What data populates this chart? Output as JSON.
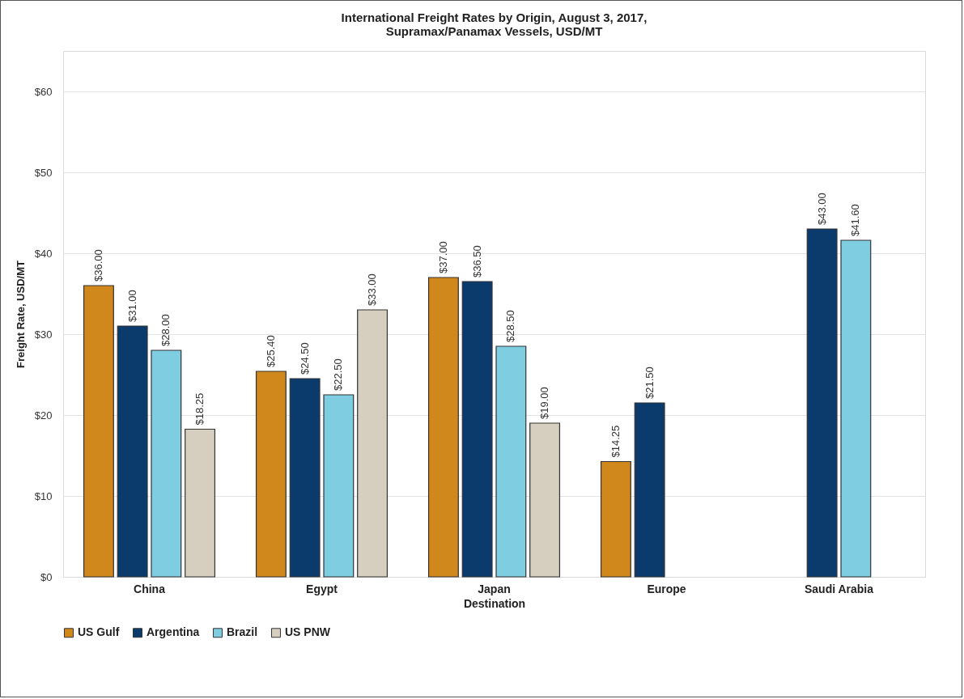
{
  "chart_data": {
    "type": "bar",
    "title": "International Freight Rates by Origin, August 3, 2017,",
    "subtitle": "Supramax/Panamax Vessels, USD/MT",
    "xlabel": "Destination",
    "ylabel": "Freight Rate, USD/MT",
    "categories": [
      "China",
      "Egypt",
      "Japan",
      "Europe",
      "Saudi Arabia"
    ],
    "series": [
      {
        "name": "US Gulf",
        "color": "#d0871c",
        "values": [
          36,
          25.4,
          37,
          14.25,
          null
        ],
        "value_labels": [
          "$36.00",
          "$25.40",
          "$37.00",
          "$14.25",
          null
        ]
      },
      {
        "name": "Argentina",
        "color": "#0b3a6d",
        "values": [
          31,
          24.5,
          36.5,
          21.5,
          43
        ],
        "value_labels": [
          "$31.00",
          "$24.50",
          "$36.50",
          "$21.50",
          "$43.00"
        ]
      },
      {
        "name": "Brazil",
        "color": "#7ecde0",
        "values": [
          28,
          22.5,
          28.5,
          null,
          41.6
        ],
        "value_labels": [
          "$28.00",
          "$22.50",
          "$28.50",
          null,
          "$41.60"
        ]
      },
      {
        "name": "US PNW",
        "color": "#d6cfbf",
        "values": [
          18.25,
          33,
          19,
          null,
          null
        ],
        "value_labels": [
          "$18.25",
          "$33.00",
          "$19.00",
          null,
          null
        ]
      }
    ],
    "ylim": [
      0,
      65
    ],
    "yticks": [
      {
        "value": 0,
        "label": "$0"
      },
      {
        "value": 10,
        "label": "$10"
      },
      {
        "value": 20,
        "label": "$20"
      },
      {
        "value": 30,
        "label": "$30"
      },
      {
        "value": 40,
        "label": "$40"
      },
      {
        "value": 50,
        "label": "$50"
      },
      {
        "value": 60,
        "label": "$60"
      }
    ],
    "grid": "y",
    "legend": "bottom"
  }
}
